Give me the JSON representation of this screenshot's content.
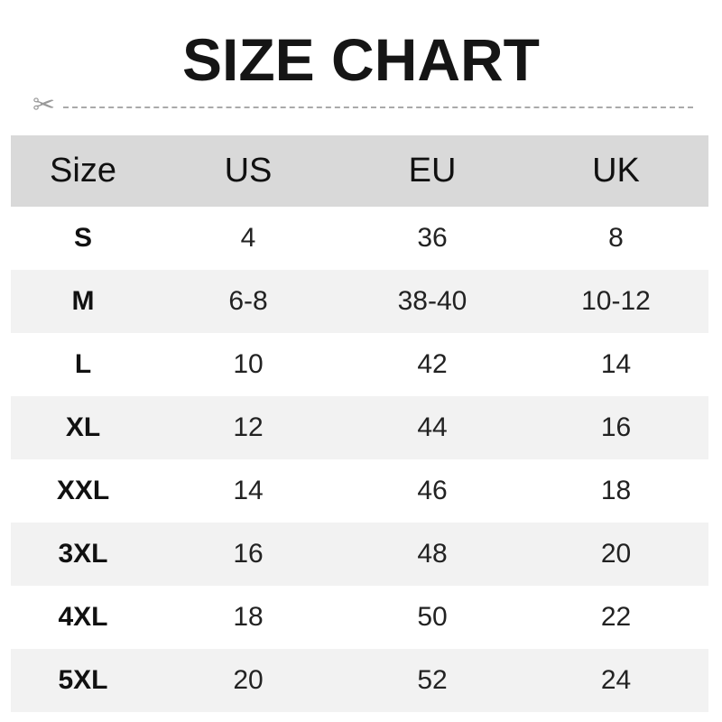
{
  "title": "SIZE CHART",
  "cut_icon": "scissors-icon",
  "colors": {
    "header_bg": "#d9d9d9",
    "alt_row_bg": "#f2f2f2",
    "dashed_line": "#aaaaaa"
  },
  "table": {
    "headers": [
      "Size",
      "US",
      "EU",
      "UK"
    ],
    "rows": [
      [
        "S",
        "4",
        "36",
        "8"
      ],
      [
        "M",
        "6-8",
        "38-40",
        "10-12"
      ],
      [
        "L",
        "10",
        "42",
        "14"
      ],
      [
        "XL",
        "12",
        "44",
        "16"
      ],
      [
        "XXL",
        "14",
        "46",
        "18"
      ],
      [
        "3XL",
        "16",
        "48",
        "20"
      ],
      [
        "4XL",
        "18",
        "50",
        "22"
      ],
      [
        "5XL",
        "20",
        "52",
        "24"
      ]
    ]
  }
}
